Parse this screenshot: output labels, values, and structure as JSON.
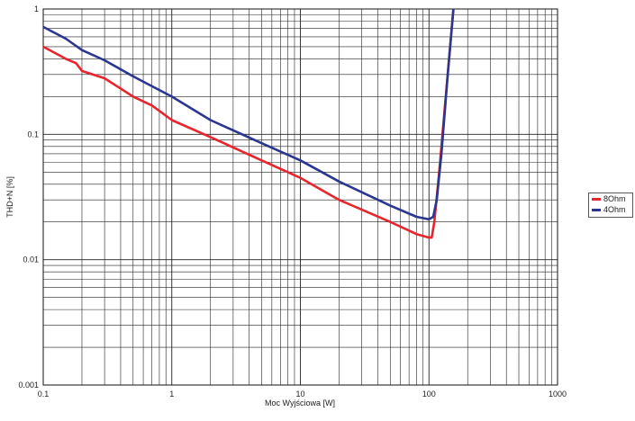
{
  "chart_data": {
    "type": "line",
    "xlabel": "Moc Wyjściowa [W]",
    "ylabel": "THD+N [%]",
    "x_scale": "log",
    "y_scale": "log",
    "xlim": [
      0.1,
      1000
    ],
    "ylim": [
      0.001,
      1
    ],
    "x_ticks": [
      "0.1",
      "1",
      "10",
      "100",
      "1000"
    ],
    "y_ticks": [
      "1",
      "0.1",
      "0.01",
      "0.001"
    ],
    "grid": true,
    "legend_position": "right",
    "series": [
      {
        "name": "8Ohm",
        "color": "#e8242c",
        "points": [
          [
            0.1,
            0.5
          ],
          [
            0.15,
            0.4
          ],
          [
            0.18,
            0.37
          ],
          [
            0.2,
            0.32
          ],
          [
            0.3,
            0.28
          ],
          [
            0.5,
            0.2
          ],
          [
            0.7,
            0.17
          ],
          [
            1,
            0.13
          ],
          [
            2,
            0.095
          ],
          [
            5,
            0.062
          ],
          [
            10,
            0.045
          ],
          [
            20,
            0.03
          ],
          [
            50,
            0.02
          ],
          [
            80,
            0.016
          ],
          [
            100,
            0.015
          ],
          [
            105,
            0.015
          ],
          [
            110,
            0.02
          ],
          [
            120,
            0.05
          ],
          [
            135,
            0.2
          ],
          [
            155,
            1.0
          ]
        ]
      },
      {
        "name": "4Ohm",
        "color": "#2b3690",
        "points": [
          [
            0.1,
            0.72
          ],
          [
            0.15,
            0.58
          ],
          [
            0.2,
            0.47
          ],
          [
            0.3,
            0.39
          ],
          [
            0.5,
            0.29
          ],
          [
            1,
            0.2
          ],
          [
            2,
            0.13
          ],
          [
            5,
            0.085
          ],
          [
            10,
            0.062
          ],
          [
            20,
            0.042
          ],
          [
            50,
            0.027
          ],
          [
            80,
            0.022
          ],
          [
            100,
            0.021
          ],
          [
            108,
            0.022
          ],
          [
            115,
            0.03
          ],
          [
            125,
            0.07
          ],
          [
            140,
            0.3
          ],
          [
            155,
            1.0
          ]
        ]
      }
    ]
  }
}
